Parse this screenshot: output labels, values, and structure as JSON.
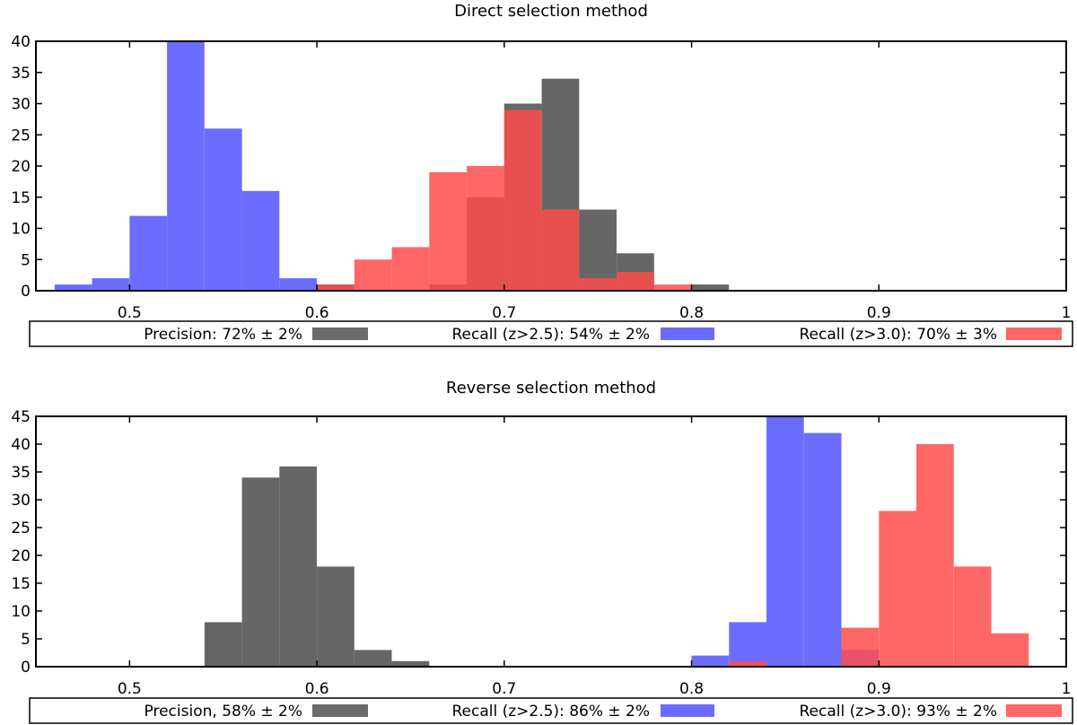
{
  "chart_data": [
    {
      "type": "bar",
      "title": "Direct selection method",
      "xlim": [
        0.45,
        1.0
      ],
      "ylim": [
        0,
        40
      ],
      "xticks": [
        "0.5",
        "0.6",
        "0.7",
        "0.8",
        "0.9",
        "1"
      ],
      "yticks": [
        "0",
        "5",
        "10",
        "15",
        "20",
        "25",
        "30",
        "35",
        "40"
      ],
      "bin_width": 0.02,
      "legend_position": "bottom",
      "legend": [
        {
          "label": "Precision: 72% ± 2%",
          "color": "#6b6b6b"
        },
        {
          "label": "Recall (z>2.5): 54% ± 2%",
          "color": "#6b6bff"
        },
        {
          "label": "Recall (z>3.0): 70% ± 3%",
          "color": "#ff6666"
        }
      ],
      "series": [
        {
          "name": "Precision",
          "color": "#555555",
          "opacity": 0.9,
          "bins": [
            0.6,
            0.62,
            0.64,
            0.66,
            0.68,
            0.7,
            0.72,
            0.74,
            0.76,
            0.78,
            0.8
          ],
          "values": [
            1,
            0,
            0,
            1,
            15,
            30,
            34,
            13,
            6,
            0,
            1
          ]
        },
        {
          "name": "Recall (z>2.5)",
          "color": "#5c5cff",
          "opacity": 0.9,
          "bins": [
            0.46,
            0.48,
            0.5,
            0.52,
            0.54,
            0.56,
            0.58
          ],
          "values": [
            1,
            2,
            12,
            40,
            26,
            16,
            2
          ]
        },
        {
          "name": "Recall (z>3.0)",
          "color": "#ff4c4c",
          "opacity": 0.85,
          "bins": [
            0.6,
            0.62,
            0.64,
            0.66,
            0.68,
            0.7,
            0.72,
            0.74,
            0.76,
            0.78
          ],
          "values": [
            1,
            5,
            7,
            19,
            20,
            29,
            13,
            2,
            3,
            1
          ]
        }
      ]
    },
    {
      "type": "bar",
      "title": "Reverse selection method",
      "xlim": [
        0.45,
        1.0
      ],
      "ylim": [
        0,
        45
      ],
      "xticks": [
        "0.5",
        "0.6",
        "0.7",
        "0.8",
        "0.9",
        "1"
      ],
      "yticks": [
        "0",
        "5",
        "10",
        "15",
        "20",
        "25",
        "30",
        "35",
        "40",
        "45"
      ],
      "bin_width": 0.02,
      "legend_position": "bottom",
      "legend": [
        {
          "label": "Precision, 58% ± 2%",
          "color": "#6b6b6b"
        },
        {
          "label": "Recall (z>2.5): 86% ± 2%",
          "color": "#6b6bff"
        },
        {
          "label": "Recall (z>3.0): 93% ± 2%",
          "color": "#ff6666"
        }
      ],
      "series": [
        {
          "name": "Precision",
          "color": "#555555",
          "opacity": 0.9,
          "bins": [
            0.54,
            0.56,
            0.58,
            0.6,
            0.62,
            0.64
          ],
          "values": [
            8,
            34,
            36,
            18,
            3,
            1
          ]
        },
        {
          "name": "Recall (z>2.5)",
          "color": "#5c5cff",
          "opacity": 0.9,
          "bins": [
            0.8,
            0.82,
            0.84,
            0.86,
            0.88
          ],
          "values": [
            2,
            8,
            45,
            42,
            3
          ]
        },
        {
          "name": "Recall (z>3.0)",
          "color": "#ff4c4c",
          "opacity": 0.85,
          "bins": [
            0.82,
            0.84,
            0.86,
            0.88,
            0.9,
            0.92,
            0.94,
            0.96
          ],
          "values": [
            1,
            0,
            0,
            7,
            28,
            40,
            18,
            6
          ]
        }
      ]
    }
  ]
}
